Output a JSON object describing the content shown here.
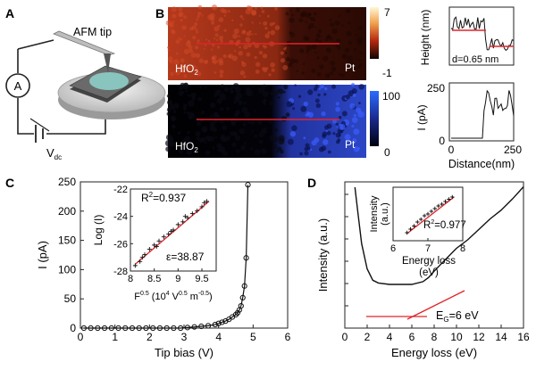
{
  "panel_labels": {
    "a": "A",
    "b": "B",
    "c": "C",
    "d": "D"
  },
  "panel_a": {
    "afm_label": "AFM tip",
    "ammeter": "A",
    "voltage": "V",
    "voltage_sub": "dc"
  },
  "panel_b": {
    "map_top_left": "HfO",
    "map_top_sub": "2",
    "map_top_right": "Pt",
    "map_bottom_left": "HfO",
    "map_bottom_sub": "2",
    "map_bottom_right": "Pt",
    "height_colorbar": [
      "7",
      "-1"
    ],
    "current_colorbar": [
      "100",
      "0"
    ],
    "height_ylabel": "Height (nm)",
    "current_ylabel": "I (pA)",
    "step_annotation": "d=0.65 nm",
    "current_yticks": [
      "250",
      "0"
    ],
    "xticks": [
      "0",
      "250"
    ],
    "xlabel": "Distance(nm)"
  },
  "chart_data": [
    {
      "type": "scatter",
      "title": "",
      "xlabel": "Tip bias (V)",
      "ylabel": "I (pA)",
      "xlim": [
        0,
        6
      ],
      "ylim": [
        0,
        250
      ],
      "xticks": [
        "0",
        "1",
        "2",
        "3",
        "4",
        "5",
        "6"
      ],
      "yticks": [
        "0",
        "50",
        "100",
        "150",
        "200",
        "250"
      ],
      "x": [
        0.1,
        0.3,
        0.5,
        0.7,
        0.9,
        1.1,
        1.3,
        1.5,
        1.7,
        1.9,
        2.1,
        2.3,
        2.5,
        2.7,
        2.9,
        3.1,
        3.3,
        3.5,
        3.7,
        3.9,
        4.0,
        4.1,
        4.2,
        4.3,
        4.4,
        4.5,
        4.55,
        4.6,
        4.65,
        4.7,
        4.75,
        4.8,
        4.85
      ],
      "y": [
        0,
        0,
        0,
        0,
        0,
        0,
        0,
        0,
        0,
        0,
        0,
        0,
        0,
        0,
        0,
        1,
        2,
        3,
        4,
        6,
        8,
        10,
        12,
        15,
        19,
        23,
        26,
        31,
        38,
        52,
        72,
        120,
        245
      ],
      "inset": {
        "type": "scatter",
        "xlabel": "F0.5 (104 V0.5 m-0.5)",
        "xlabel_parts": {
          "f": "F",
          "f_sup": "0.5",
          "open": " (10",
          "ten_sup": "4",
          "v": " V",
          "v_sup": "0.5",
          "m": " m",
          "m_sup": "-0.5",
          ")": ")"
        },
        "ylabel": "Log (I)",
        "xlim": [
          8,
          9.8
        ],
        "ylim": [
          -28,
          -22
        ],
        "xticks": [
          "8",
          "8.5",
          "9",
          "9.5"
        ],
        "yticks": [
          "-22",
          "-24",
          "-26",
          "-28"
        ],
        "x": [
          8.1,
          8.2,
          8.25,
          8.3,
          8.4,
          8.5,
          8.55,
          8.6,
          8.7,
          8.8,
          8.85,
          8.9,
          9.0,
          9.1,
          9.15,
          9.2,
          9.3,
          9.4,
          9.5,
          9.55,
          9.6
        ],
        "y": [
          -27.6,
          -27.3,
          -27.0,
          -26.8,
          -26.4,
          -26.1,
          -26.2,
          -25.8,
          -25.5,
          -25.3,
          -25.1,
          -25.0,
          -24.6,
          -24.4,
          -24.0,
          -24.1,
          -23.8,
          -23.6,
          -23.3,
          -23.0,
          -22.9
        ],
        "fit": {
          "x": [
            8.1,
            9.65
          ],
          "y": [
            -27.5,
            -22.9
          ]
        },
        "r2_label": "R",
        "r2_sup": "2",
        "r2_value": "=0.937",
        "eps_label": "ε=38.87"
      }
    },
    {
      "type": "line",
      "title": "",
      "xlabel": "Energy loss (eV)",
      "ylabel": "Intensity (a.u.)",
      "xlim": [
        0,
        16
      ],
      "xticks": [
        "0",
        "2",
        "4",
        "6",
        "8",
        "10",
        "12",
        "14",
        "16"
      ],
      "x": [
        0.9,
        1.2,
        1.5,
        2,
        2.5,
        3,
        4,
        5,
        6,
        7,
        7.5,
        8,
        9,
        10,
        11,
        12,
        13,
        14,
        15,
        16
      ],
      "y": [
        100,
        80,
        60,
        42,
        34,
        32,
        31,
        31,
        31,
        33,
        36,
        40,
        48,
        56,
        63,
        70,
        77,
        84,
        92,
        100
      ],
      "annotation": "E",
      "annotation_sub": "G",
      "annotation_rest": "=6 eV",
      "inset": {
        "type": "scatter",
        "xlabel": "Energy loss",
        "xlabel2": "(eV)",
        "ylabel": "Intensity",
        "ylabel2": "(a.u.)",
        "xlim": [
          6,
          8
        ],
        "xticks": [
          "6",
          "7",
          "8"
        ],
        "x": [
          6.4,
          6.5,
          6.6,
          6.7,
          6.8,
          6.9,
          7.0,
          7.1,
          7.2,
          7.3,
          7.4,
          7.5,
          7.6,
          7.7
        ],
        "y": [
          0.1,
          0.18,
          0.25,
          0.34,
          0.4,
          0.48,
          0.52,
          0.58,
          0.64,
          0.7,
          0.74,
          0.8,
          0.85,
          0.9
        ],
        "fit": {
          "x": [
            6.4,
            7.75
          ],
          "y": [
            0.08,
            0.9
          ]
        },
        "r2_label": "R",
        "r2_sup": "2",
        "r2_value": "=0.977"
      }
    }
  ],
  "colors": {
    "fit": "#e0242a",
    "data": "#111111",
    "hfo2_map": "#b83a1e",
    "pt_map": "#2a3ea8"
  }
}
